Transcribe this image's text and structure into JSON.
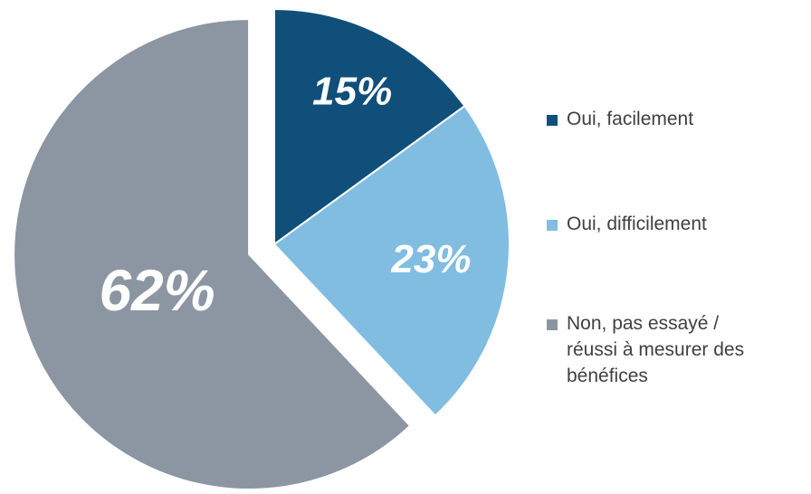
{
  "chart_data": {
    "type": "pie",
    "categories": [
      "Oui, facilement",
      "Oui, difficilement",
      "Non, pas essayé /\nréussi à  mesurer des\nbénéfices"
    ],
    "values": [
      15,
      23,
      62
    ],
    "value_labels": [
      "15%",
      "23%",
      "62%"
    ],
    "colors": [
      "#0f4f7a",
      "#80bde1",
      "#8c96a3"
    ],
    "legend": "right"
  }
}
